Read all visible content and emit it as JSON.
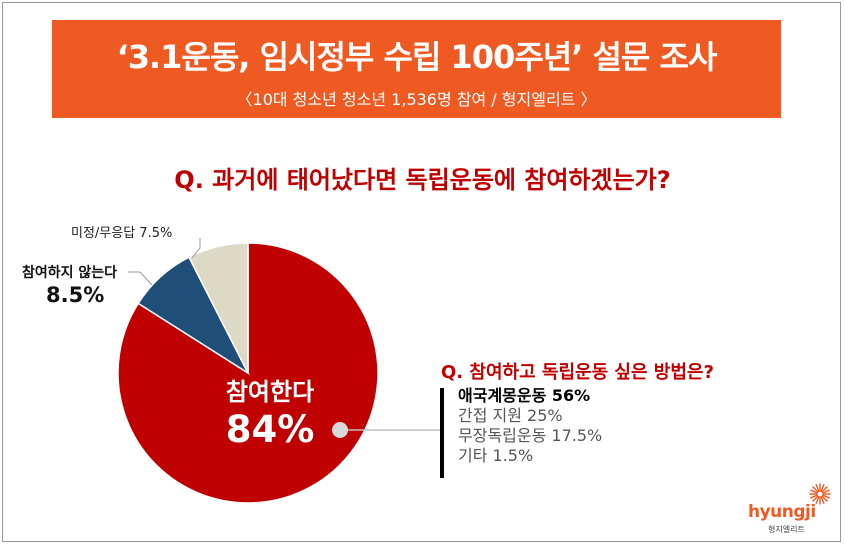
{
  "header": {
    "title": "‘3.1운동, 임시정부 수립 100주년’ 설문 조사",
    "subtitle": "〈10대 청소년 청소년 1,536명 참여 / 형지엘리트 〉",
    "background_color": "#ef5a22"
  },
  "question_main": "Q. 과거에 태어났다면 독립운동에 참여하겠는가?",
  "chart_data": {
    "type": "pie",
    "slices": [
      {
        "label": "참여한다",
        "value": 84,
        "display": "84%",
        "color": "#c00000"
      },
      {
        "label": "참여하지 않는다",
        "value": 8.5,
        "display": "8.5%",
        "color": "#1f4e79"
      },
      {
        "label": "미정/무응답",
        "value": 7.5,
        "display": "7.5%",
        "color": "#ddd9c4"
      }
    ],
    "start_angle_deg": 0,
    "direction": "clockwise"
  },
  "callouts": {
    "undecided": "미정/무응답  7.5%",
    "no_label": "참여하지 않는다",
    "no_value": "8.5%",
    "yes_label": "참여한다",
    "yes_value": "84%"
  },
  "question_sub": {
    "title": "Q. 참여하고 독립운동 싶은 방법은?",
    "items": [
      "애국계몽운동 56%",
      "간접 지원 25%",
      "무장독립운동 17.5%",
      "기타 1.5%"
    ]
  },
  "logo": {
    "name": "hyungji",
    "sub": "형지엘리트",
    "color": "#ef5a22"
  }
}
